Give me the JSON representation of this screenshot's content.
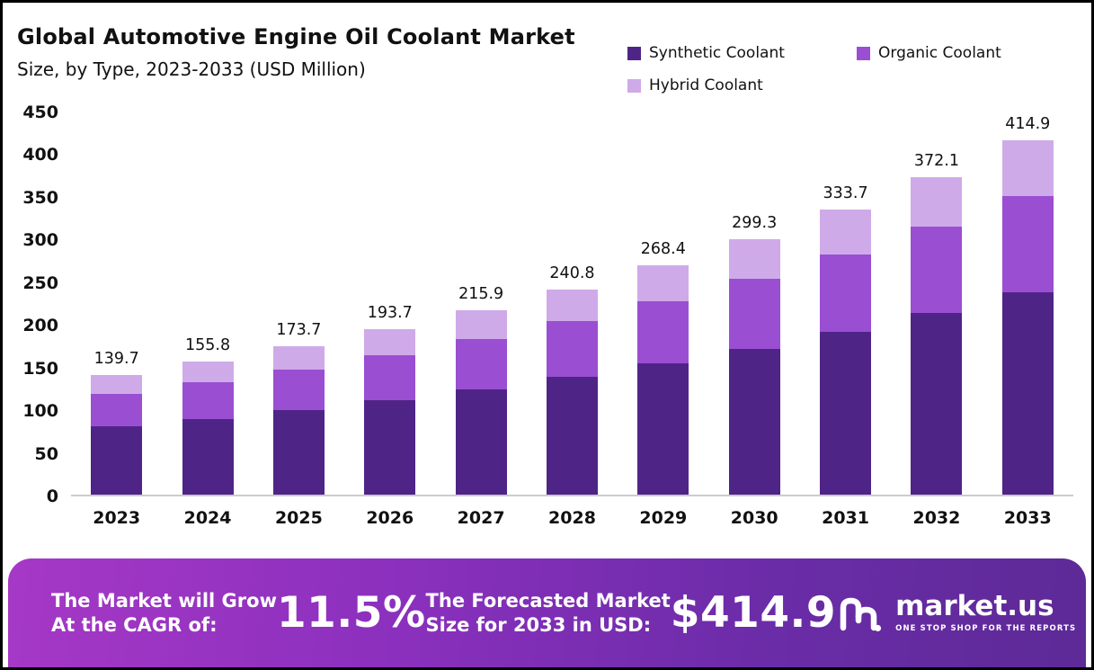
{
  "header": {
    "title": "Global Automotive Engine Oil Coolant Market",
    "subtitle": "Size, by Type, 2023-2033 (USD Million)"
  },
  "legend": [
    {
      "label": "Synthetic Coolant",
      "color": "#4f2487"
    },
    {
      "label": "Organic Coolant",
      "color": "#9a4ed2"
    },
    {
      "label": "Hybrid Coolant",
      "color": "#cfaae8"
    }
  ],
  "chart_data": {
    "type": "bar",
    "stacked": true,
    "title": "Global Automotive Engine Oil Coolant Market Size, by Type, 2023-2033 (USD Million)",
    "categories": [
      "2023",
      "2024",
      "2025",
      "2026",
      "2027",
      "2028",
      "2029",
      "2030",
      "2031",
      "2032",
      "2033"
    ],
    "series": [
      {
        "name": "Synthetic Coolant",
        "color": "#4f2487",
        "values": [
          79.9,
          89.1,
          99.3,
          110.7,
          123.4,
          137.6,
          153.4,
          171.0,
          190.7,
          212.6,
          237.1
        ]
      },
      {
        "name": "Organic Coolant",
        "color": "#9a4ed2",
        "values": [
          38.1,
          42.5,
          47.4,
          52.9,
          58.9,
          65.7,
          73.2,
          81.7,
          91.0,
          101.5,
          113.2
        ]
      },
      {
        "name": "Hybrid Coolant",
        "color": "#cfaae8",
        "values": [
          21.7,
          24.2,
          27.0,
          30.1,
          33.6,
          37.5,
          41.8,
          46.6,
          52.0,
          58.0,
          64.6
        ]
      }
    ],
    "totals": [
      139.7,
      155.8,
      173.7,
      193.7,
      215.9,
      240.8,
      268.4,
      299.3,
      333.7,
      372.1,
      414.9
    ],
    "total_labels": [
      "139.7",
      "155.8",
      "173.7",
      "193.7",
      "215.9",
      "240.8",
      "268.4",
      "299.3",
      "333.7",
      "372.1",
      "414.9"
    ],
    "xlabel": "",
    "ylabel": "",
    "ylim": [
      0,
      450
    ],
    "yticks": [
      0,
      50,
      100,
      150,
      200,
      250,
      300,
      350,
      400,
      450
    ],
    "grid": false,
    "legend_position": "top-right"
  },
  "banner": {
    "cagr_label_line1": "The Market will Grow",
    "cagr_label_line2": "At the CAGR of:",
    "cagr_value": "11.5%",
    "forecast_label_line1": "The Forecasted Market",
    "forecast_label_line2": "Size for 2033 in USD:",
    "forecast_value": "$414.9",
    "brand": "market.us",
    "brand_tagline": "ONE STOP SHOP FOR THE REPORTS"
  }
}
